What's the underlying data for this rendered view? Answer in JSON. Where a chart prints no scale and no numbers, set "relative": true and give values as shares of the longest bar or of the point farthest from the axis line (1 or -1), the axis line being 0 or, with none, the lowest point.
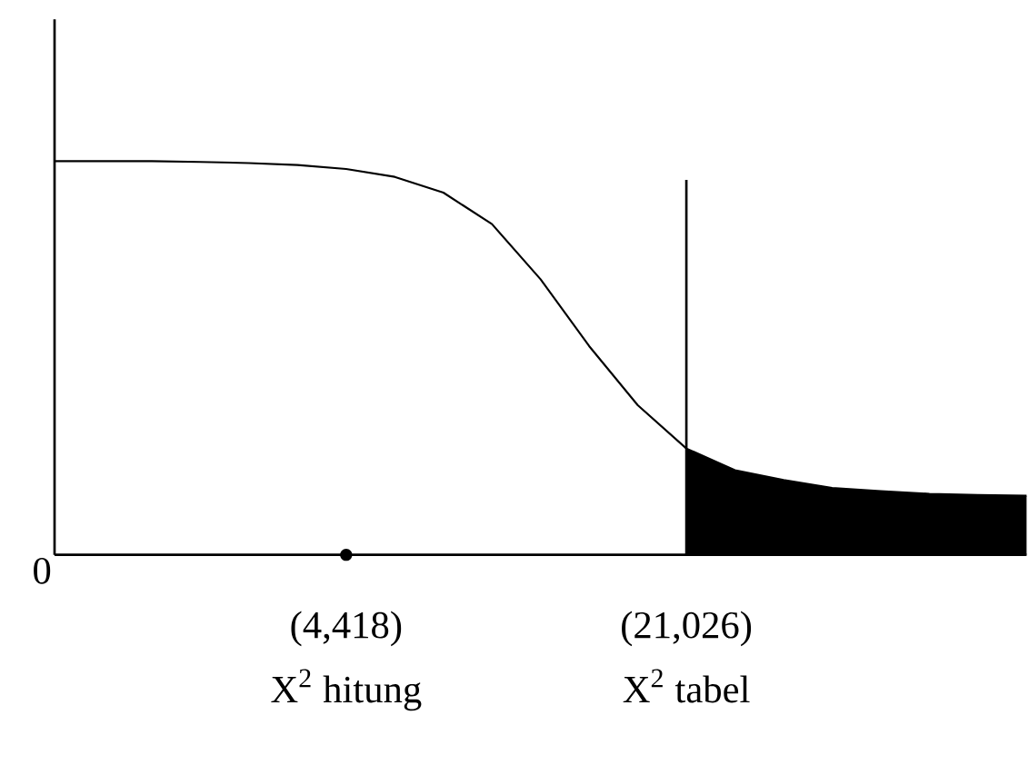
{
  "chart_data": {
    "type": "line",
    "relative": true,
    "tick_labels": false,
    "categories": [
      null,
      null,
      null,
      null,
      null,
      null,
      null,
      null,
      null,
      null,
      null,
      null,
      null,
      null,
      null,
      null,
      null,
      null,
      null,
      null,
      null
    ],
    "series": [
      {
        "color": "#000000",
        "values": [
          1.0,
          1.0,
          1.0,
          0.998,
          0.995,
          0.99,
          0.98,
          0.96,
          0.92,
          0.84,
          0.7,
          0.53,
          0.38,
          0.27,
          0.215,
          0.19,
          0.17,
          0.162,
          0.155,
          0.152,
          0.15
        ]
      }
    ],
    "annotations": [
      "0",
      "(4,418)",
      "X$^{2}$ hitung",
      "(21,026)",
      "X$^{2}$ tabel"
    ]
  }
}
